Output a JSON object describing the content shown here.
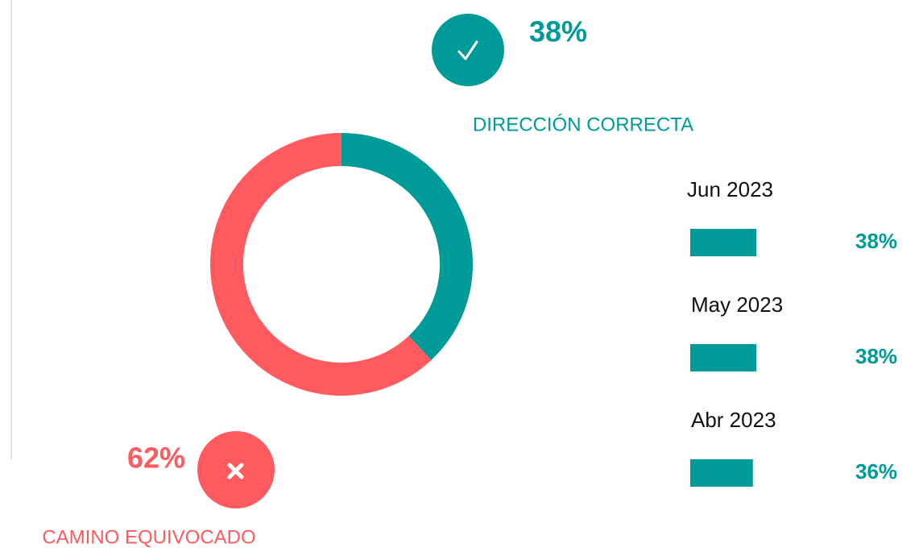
{
  "chart_data": [
    {
      "type": "donut",
      "categories": [
        "DIRECCIÓN CORRECTA",
        "CAMINO EQUIVOCADO"
      ],
      "values": [
        38,
        62
      ],
      "value_labels": [
        "38%",
        "62%"
      ],
      "colors": [
        "#009a98",
        "#ff5a5f"
      ]
    },
    {
      "type": "bar",
      "orientation": "horizontal",
      "categories": [
        "Jun 2023",
        "May 2023",
        "Abr 2023"
      ],
      "values": [
        38,
        38,
        36
      ],
      "value_labels": [
        "38%",
        "38%",
        "36%"
      ],
      "color": "#009a98"
    }
  ]
}
